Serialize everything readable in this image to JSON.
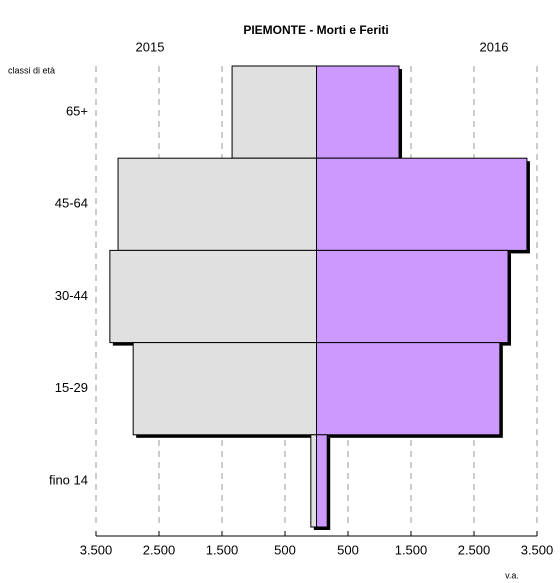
{
  "chart_data": {
    "type": "pyramid",
    "title": "PIEMONTE - Morti e Feriti",
    "y_label": "classi di età",
    "x_label": "v.a.",
    "categories": [
      "65+",
      "45-64",
      "30-44",
      "15-29",
      "fino 14"
    ],
    "series": [
      {
        "name": "2015",
        "color": "#e0e0e0",
        "values": [
          1340,
          3150,
          3280,
          2910,
          90
        ]
      },
      {
        "name": "2016",
        "color": "#cc99ff",
        "values": [
          1310,
          3340,
          3040,
          2910,
          170
        ]
      }
    ],
    "xlim": [
      -3500,
      3500
    ],
    "xticks": [
      {
        "value": -3500,
        "label": "3.500"
      },
      {
        "value": -2500,
        "label": "2.500"
      },
      {
        "value": -1500,
        "label": "1.500"
      },
      {
        "value": -500,
        "label": "500"
      },
      500,
      {
        "value": 1500,
        "label": "1.500"
      },
      {
        "value": 2500,
        "label": "2.500"
      },
      {
        "value": 3500,
        "label": "3.500"
      }
    ],
    "grid": true
  }
}
